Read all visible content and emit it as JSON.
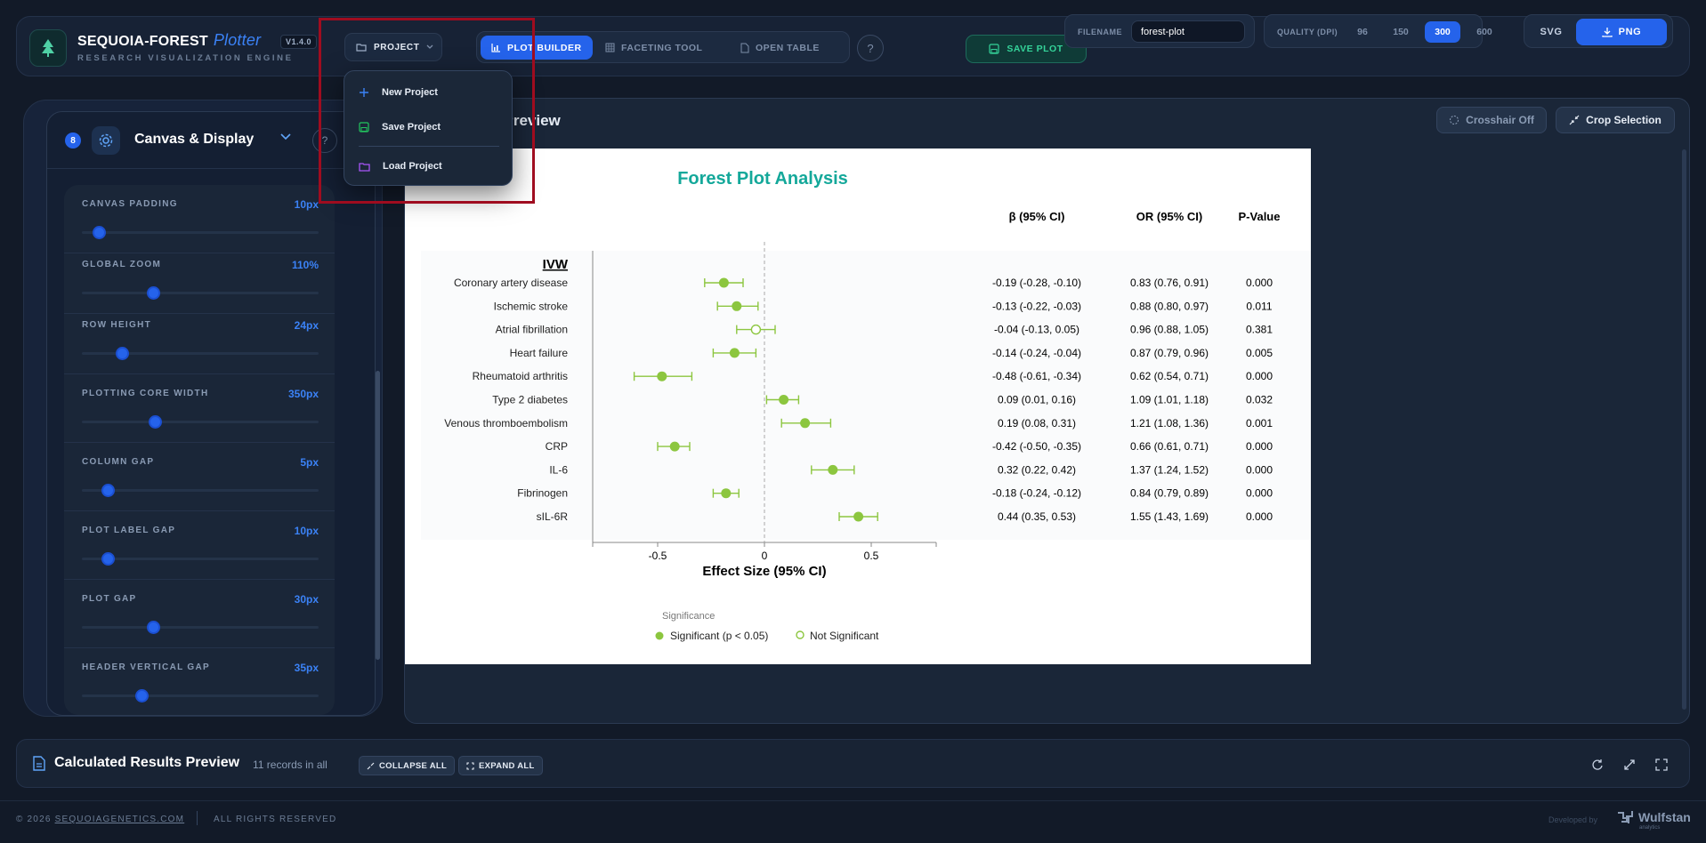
{
  "header": {
    "title": "SEQUOIA-FOREST",
    "title_accent": "Plotter",
    "version": "V1.4.0",
    "subtitle": "RESEARCH VISUALIZATION ENGINE",
    "project_label": "PROJECT",
    "tabs": [
      {
        "label": "PLOT BUILDER",
        "icon": "bar-chart-icon",
        "active": true
      },
      {
        "label": "FACETING TOOL",
        "icon": "grid-icon",
        "active": false
      },
      {
        "label": "OPEN TABLE",
        "icon": "document-icon",
        "active": false
      }
    ],
    "save_label": "SAVE PLOT",
    "filename_label": "FILENAME",
    "filename_value": "forest-plot",
    "quality_label": "QUALITY (DPI)",
    "dpi_options": [
      "96",
      "150",
      "300",
      "600"
    ],
    "dpi_selected": "300",
    "format_svg": "SVG",
    "format_png": "PNG"
  },
  "dropdown": {
    "items": [
      {
        "label": "New Project",
        "icon": "plus-icon",
        "color": "#3b82f6"
      },
      {
        "label": "Save Project",
        "icon": "save-icon",
        "color": "#22c55e"
      },
      {
        "label": "Load Project",
        "icon": "folder-icon",
        "color": "#a855f7"
      }
    ]
  },
  "sidebar": {
    "badge": "8",
    "title": "Canvas & Display",
    "settings": [
      {
        "label": "CANVAS PADDING",
        "value": "10px",
        "fraction": 0.07
      },
      {
        "label": "GLOBAL ZOOM",
        "value": "110%",
        "fraction": 0.3
      },
      {
        "label": "ROW HEIGHT",
        "value": "24px",
        "fraction": 0.17
      },
      {
        "label": "PLOTTING CORE WIDTH",
        "value": "350px",
        "fraction": 0.31
      },
      {
        "label": "COLUMN GAP",
        "value": "5px",
        "fraction": 0.11
      },
      {
        "label": "PLOT LABEL GAP",
        "value": "10px",
        "fraction": 0.11
      },
      {
        "label": "PLOT GAP",
        "value": "30px",
        "fraction": 0.3
      },
      {
        "label": "HEADER VERTICAL GAP",
        "value": "35px",
        "fraction": 0.25
      }
    ]
  },
  "preview": {
    "title": "Forest Plot Preview",
    "crosshair_label": "Crosshair Off",
    "crop_label": "Crop Selection"
  },
  "chart_data": {
    "type": "forest",
    "title": "Forest Plot Analysis",
    "group_label": "IVW",
    "xlabel": "Effect Size (95% CI)",
    "xlim": [
      -0.8,
      0.8
    ],
    "xticks": [
      -0.5,
      0,
      0.5
    ],
    "reference_line": 0,
    "columns": [
      "β (95% CI)",
      "OR (95% CI)",
      "P-Value"
    ],
    "rows": [
      {
        "label": "Coronary artery disease",
        "beta": -0.19,
        "lo": -0.28,
        "hi": -0.1,
        "beta_ci": "-0.19 (-0.28, -0.10)",
        "or_ci": "0.83 (0.76, 0.91)",
        "p": "0.000",
        "significant": true
      },
      {
        "label": "Ischemic stroke",
        "beta": -0.13,
        "lo": -0.22,
        "hi": -0.03,
        "beta_ci": "-0.13 (-0.22, -0.03)",
        "or_ci": "0.88 (0.80, 0.97)",
        "p": "0.011",
        "significant": true
      },
      {
        "label": "Atrial fibrillation",
        "beta": -0.04,
        "lo": -0.13,
        "hi": 0.05,
        "beta_ci": "-0.04 (-0.13, 0.05)",
        "or_ci": "0.96 (0.88, 1.05)",
        "p": "0.381",
        "significant": false
      },
      {
        "label": "Heart failure",
        "beta": -0.14,
        "lo": -0.24,
        "hi": -0.04,
        "beta_ci": "-0.14 (-0.24, -0.04)",
        "or_ci": "0.87 (0.79, 0.96)",
        "p": "0.005",
        "significant": true
      },
      {
        "label": "Rheumatoid arthritis",
        "beta": -0.48,
        "lo": -0.61,
        "hi": -0.34,
        "beta_ci": "-0.48 (-0.61, -0.34)",
        "or_ci": "0.62 (0.54, 0.71)",
        "p": "0.000",
        "significant": true
      },
      {
        "label": "Type 2 diabetes",
        "beta": 0.09,
        "lo": 0.01,
        "hi": 0.16,
        "beta_ci": "0.09 (0.01, 0.16)",
        "or_ci": "1.09 (1.01, 1.18)",
        "p": "0.032",
        "significant": true
      },
      {
        "label": "Venous thromboembolism",
        "beta": 0.19,
        "lo": 0.08,
        "hi": 0.31,
        "beta_ci": "0.19 (0.08, 0.31)",
        "or_ci": "1.21 (1.08, 1.36)",
        "p": "0.001",
        "significant": true
      },
      {
        "label": "CRP",
        "beta": -0.42,
        "lo": -0.5,
        "hi": -0.35,
        "beta_ci": "-0.42 (-0.50, -0.35)",
        "or_ci": "0.66 (0.61, 0.71)",
        "p": "0.000",
        "significant": true
      },
      {
        "label": "IL-6",
        "beta": 0.32,
        "lo": 0.22,
        "hi": 0.42,
        "beta_ci": "0.32 (0.22, 0.42)",
        "or_ci": "1.37 (1.24, 1.52)",
        "p": "0.000",
        "significant": true
      },
      {
        "label": "Fibrinogen",
        "beta": -0.18,
        "lo": -0.24,
        "hi": -0.12,
        "beta_ci": "-0.18 (-0.24, -0.12)",
        "or_ci": "0.84 (0.79, 0.89)",
        "p": "0.000",
        "significant": true
      },
      {
        "label": "sIL-6R",
        "beta": 0.44,
        "lo": 0.35,
        "hi": 0.53,
        "beta_ci": "0.44 (0.35, 0.53)",
        "or_ci": "1.55 (1.43, 1.69)",
        "p": "0.000",
        "significant": true
      }
    ],
    "legend": {
      "title": "Significance",
      "significant": "Significant (p < 0.05)",
      "not_significant": "Not Significant"
    },
    "marker_color": "#8cc63f",
    "title_color": "#14a89a"
  },
  "results": {
    "title": "Calculated Results Preview",
    "count": "11 records in all",
    "collapse_label": "COLLAPSE ALL",
    "expand_label": "EXPAND ALL"
  },
  "footer": {
    "copyright": "© 2026",
    "site": "SEQUOIAGENETICS.COM",
    "rights": "ALL RIGHTS RESERVED",
    "developed_by": "Developed by",
    "brand": "Wulfstan",
    "brand_sub": "analytics"
  }
}
